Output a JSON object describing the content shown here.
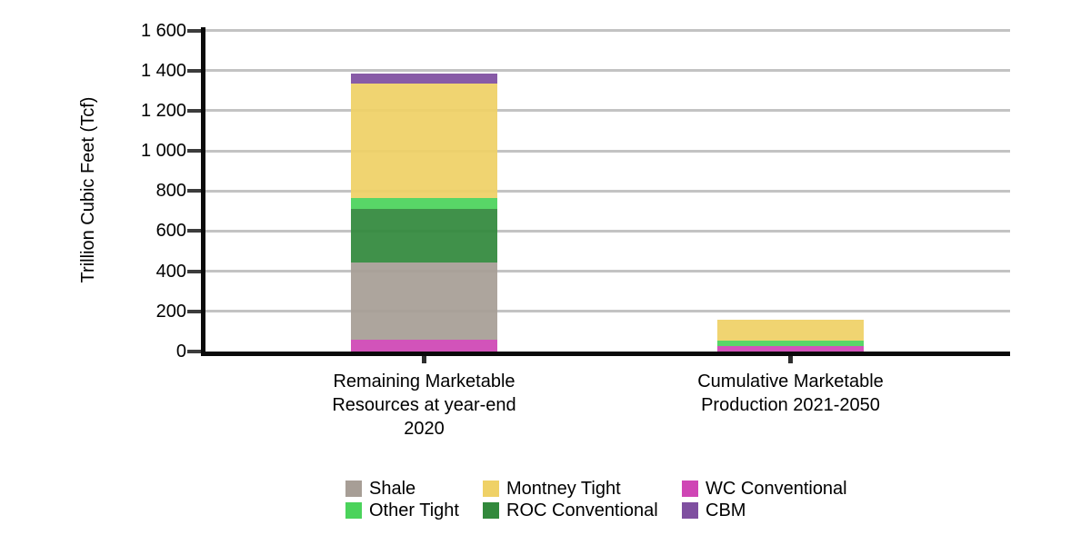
{
  "chart_data": {
    "type": "bar",
    "stacked": true,
    "stack_order": "bottom-to-top",
    "title": "",
    "xlabel": "",
    "ylabel": "Trillion Cubic Feet (Tcf)",
    "ylim": [
      0,
      1600
    ],
    "ytick_interval": 200,
    "ytick_labels": [
      "0",
      "200",
      "400",
      "600",
      "800",
      "1 000",
      "1 200",
      "1 400",
      "1 600"
    ],
    "grid": "horizontal",
    "legend_position": "bottom",
    "categories": [
      {
        "label_lines": [
          "Remaining Marketable",
          "Resources at year-end",
          "2020"
        ]
      },
      {
        "label_lines": [
          "Cumulative Marketable",
          "Production 2021-2050"
        ]
      }
    ],
    "series": [
      {
        "name": "WC Conventional",
        "color": "#CF46B5",
        "values": [
          60,
          27
        ]
      },
      {
        "name": "Shale",
        "color": "#A79E96",
        "values": [
          385,
          0
        ]
      },
      {
        "name": "ROC Conventional",
        "color": "#32893C",
        "values": [
          265,
          0
        ]
      },
      {
        "name": "Other Tight",
        "color": "#4BD35B",
        "values": [
          55,
          28
        ]
      },
      {
        "name": "Montney Tight",
        "color": "#EFD166",
        "values": [
          570,
          103
        ]
      },
      {
        "name": "CBM",
        "color": "#7F4FA0",
        "values": [
          50,
          0
        ]
      }
    ],
    "legend_order": [
      "Shale",
      "Other Tight",
      "Montney Tight",
      "ROC Conventional",
      "WC Conventional",
      "CBM"
    ],
    "colors": {
      "gridline": "#C3C3C3",
      "axis": "#0A0A0A",
      "tick": "#3C3C3C",
      "text": "#000000"
    }
  }
}
